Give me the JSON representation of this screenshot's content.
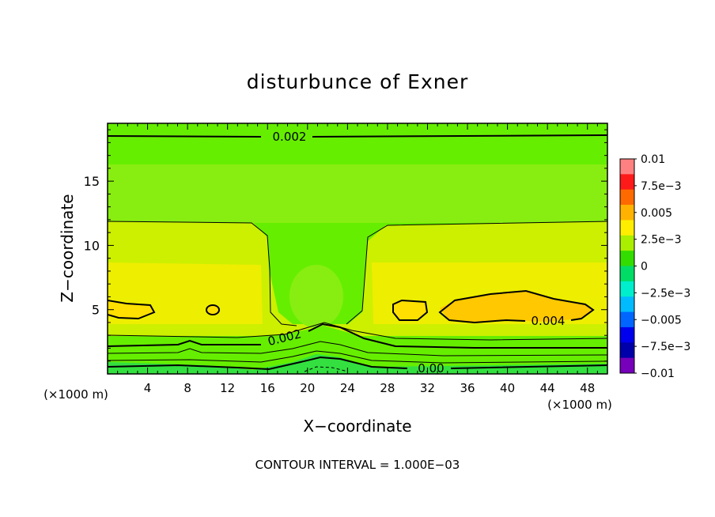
{
  "chart_data": {
    "type": "heatmap",
    "title": "disturbunce of Exner",
    "xlabel": "X−coordinate",
    "ylabel": "Z−coordinate",
    "x_unit_left": "(×1000 m)",
    "x_unit_right": "(×1000 m)",
    "xlim": [
      0,
      50
    ],
    "ylim": [
      0,
      19.5
    ],
    "x_ticks": [
      "4",
      "8",
      "12",
      "16",
      "20",
      "24",
      "28",
      "32",
      "36",
      "40",
      "44",
      "48"
    ],
    "y_ticks": [
      "5",
      "10",
      "15"
    ],
    "footer": "CONTOUR INTERVAL = 1.000E−03",
    "contour_labels": [
      "0.002",
      "0.002",
      "0.004",
      "0.00"
    ],
    "colorbar": {
      "labels": [
        "0.01",
        "7.5e−3",
        "0.005",
        "2.5e−3",
        "0",
        "−2.5e−3",
        "−0.005",
        "−7.5e−3",
        "−0.01"
      ],
      "colors": [
        "#ff8080",
        "#ff1a1a",
        "#ff6a00",
        "#ffb300",
        "#ffee00",
        "#aaee00",
        "#33dd00",
        "#00dd66",
        "#00eecc",
        "#00bbff",
        "#0066ff",
        "#0000ee",
        "#0000aa",
        "#7700bb"
      ]
    },
    "fill_colors": {
      "c0002": "#66ee00",
      "c0000": "#33e040",
      "c0025": "#88ee11",
      "c0030": "#ccf000",
      "c0035": "#eeee00",
      "c0045": "#ffe000",
      "c0050": "#ffc800"
    }
  }
}
